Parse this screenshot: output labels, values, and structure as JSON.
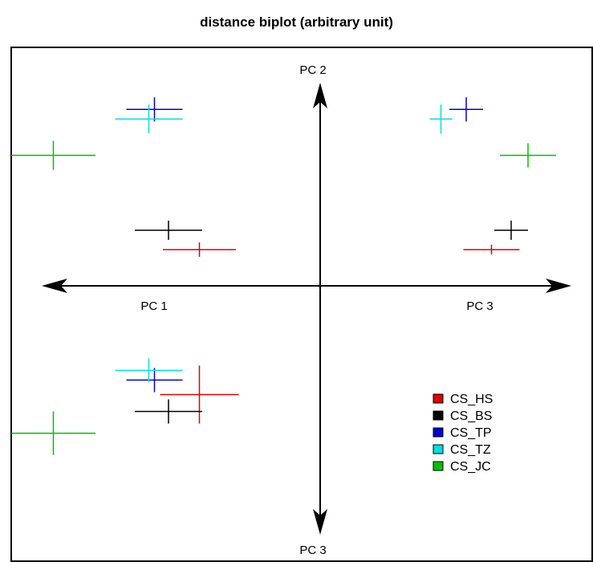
{
  "chart_data": {
    "type": "scatter",
    "title": "distance biplot (arbitrary unit)",
    "axes": {
      "horizontal": {
        "negative_label": "PC 1",
        "positive_label": "PC 3"
      },
      "vertical": {
        "positive_label": "PC 2",
        "negative_label": "PC 3"
      }
    },
    "xlim": [
      -1,
      1
    ],
    "ylim": [
      -1,
      1
    ],
    "grid": false,
    "legend_position": "bottom-right",
    "series": [
      {
        "name": "CS_HS",
        "color": "#e00000",
        "points": [
          {
            "x": -0.43,
            "y": 0.15,
            "xerr": 0.13,
            "yerr": 0.03
          },
          {
            "x": 0.61,
            "y": 0.15,
            "xerr": 0.1,
            "yerr": 0.02
          },
          {
            "x": -0.43,
            "y": -0.45,
            "xerr": 0.14,
            "yerr": 0.12
          }
        ]
      },
      {
        "name": "CS_BS",
        "color": "#000000",
        "points": [
          {
            "x": -0.54,
            "y": 0.23,
            "xerr": 0.12,
            "yerr": 0.04
          },
          {
            "x": 0.68,
            "y": 0.23,
            "xerr": 0.06,
            "yerr": 0.04
          },
          {
            "x": -0.54,
            "y": -0.52,
            "xerr": 0.12,
            "yerr": 0.05
          }
        ]
      },
      {
        "name": "CS_TP",
        "color": "#0000d0",
        "points": [
          {
            "x": -0.59,
            "y": 0.73,
            "xerr": 0.1,
            "yerr": 0.05
          },
          {
            "x": 0.52,
            "y": 0.73,
            "xerr": 0.06,
            "yerr": 0.05
          },
          {
            "x": -0.59,
            "y": -0.39,
            "xerr": 0.1,
            "yerr": 0.05
          }
        ]
      },
      {
        "name": "CS_TZ",
        "color": "#00e0e0",
        "points": [
          {
            "x": -0.61,
            "y": 0.69,
            "xerr": 0.12,
            "yerr": 0.06
          },
          {
            "x": 0.43,
            "y": 0.69,
            "xerr": 0.04,
            "yerr": 0.06
          },
          {
            "x": -0.61,
            "y": -0.35,
            "xerr": 0.12,
            "yerr": 0.05
          }
        ]
      },
      {
        "name": "CS_JC",
        "color": "#00c000",
        "points": [
          {
            "x": -0.95,
            "y": 0.54,
            "xerr": 0.15,
            "yerr": 0.06
          },
          {
            "x": 0.74,
            "y": 0.54,
            "xerr": 0.1,
            "yerr": 0.05
          },
          {
            "x": -0.95,
            "y": -0.61,
            "xerr": 0.15,
            "yerr": 0.09
          }
        ]
      }
    ]
  }
}
